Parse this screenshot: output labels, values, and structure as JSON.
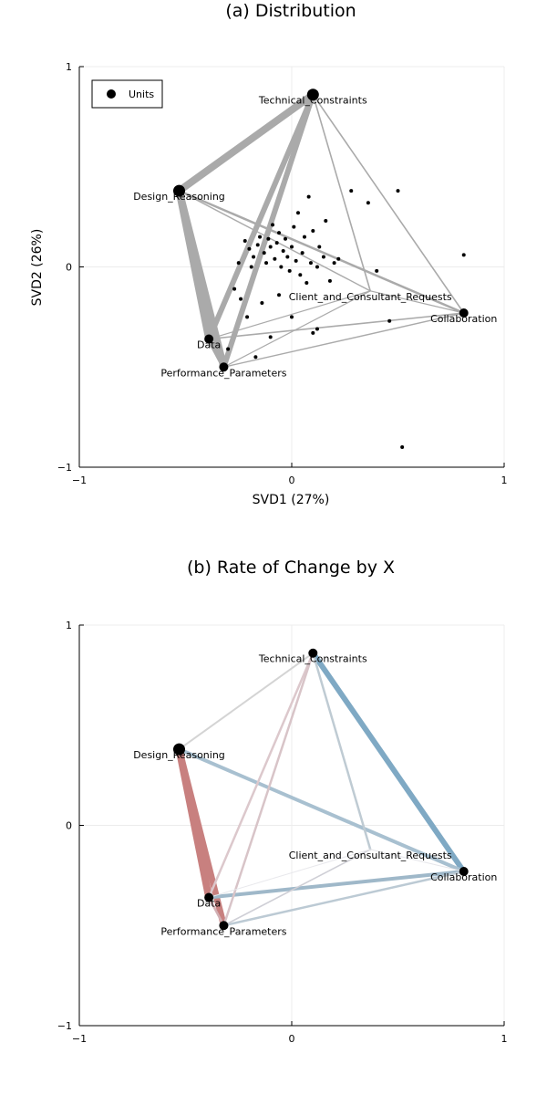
{
  "chart_data": [
    {
      "type": "scatter",
      "title": "(a) Distribution",
      "xlabel": "SVD1 (27%)",
      "ylabel": "SVD2 (26%)",
      "xlim": [
        -1,
        1
      ],
      "ylim": [
        -1,
        1
      ],
      "xticks": [
        "−1",
        "0",
        "1"
      ],
      "yticks": [
        "−1",
        "0",
        "1"
      ],
      "grid": true,
      "legend": {
        "placement": "top-left",
        "entries": [
          "Units"
        ]
      },
      "nodes": [
        {
          "label": "Technical_Constraints",
          "x": 0.1,
          "y": 0.86
        },
        {
          "label": "Design_Reasoning",
          "x": -0.53,
          "y": 0.38
        },
        {
          "label": "Client_and_Consultant_Requests",
          "x": 0.37,
          "y": -0.12
        },
        {
          "label": "Collaboration",
          "x": 0.81,
          "y": -0.23
        },
        {
          "label": "Data",
          "x": -0.39,
          "y": -0.36
        },
        {
          "label": "Performance_Parameters",
          "x": -0.32,
          "y": -0.5
        }
      ],
      "edges": [
        {
          "from": 0,
          "to": 1,
          "w": 8
        },
        {
          "from": 0,
          "to": 4,
          "w": 6
        },
        {
          "from": 0,
          "to": 5,
          "w": 6
        },
        {
          "from": 1,
          "to": 4,
          "w": 8
        },
        {
          "from": 1,
          "to": 5,
          "w": 8
        },
        {
          "from": 4,
          "to": 5,
          "w": 5
        },
        {
          "from": 0,
          "to": 2,
          "w": 1.6
        },
        {
          "from": 0,
          "to": 3,
          "w": 1.6
        },
        {
          "from": 1,
          "to": 3,
          "w": 2.5
        },
        {
          "from": 1,
          "to": 2,
          "w": 1.4
        },
        {
          "from": 4,
          "to": 3,
          "w": 1.6
        },
        {
          "from": 5,
          "to": 3,
          "w": 1.4
        },
        {
          "from": 5,
          "to": 2,
          "w": 1.2
        },
        {
          "from": 4,
          "to": 2,
          "w": 1.2
        },
        {
          "from": 2,
          "to": 3,
          "w": 1.2
        }
      ],
      "units": [
        {
          "x": -0.25,
          "y": 0.02
        },
        {
          "x": -0.22,
          "y": 0.13
        },
        {
          "x": -0.2,
          "y": 0.09
        },
        {
          "x": -0.18,
          "y": 0.05
        },
        {
          "x": -0.16,
          "y": 0.11
        },
        {
          "x": -0.15,
          "y": 0.15
        },
        {
          "x": -0.13,
          "y": 0.07
        },
        {
          "x": -0.12,
          "y": 0.02
        },
        {
          "x": -0.11,
          "y": 0.14
        },
        {
          "x": -0.1,
          "y": 0.1
        },
        {
          "x": -0.09,
          "y": 0.21
        },
        {
          "x": -0.08,
          "y": 0.04
        },
        {
          "x": -0.07,
          "y": 0.12
        },
        {
          "x": -0.06,
          "y": 0.17
        },
        {
          "x": -0.05,
          "y": 0.0
        },
        {
          "x": -0.04,
          "y": 0.08
        },
        {
          "x": -0.03,
          "y": 0.14
        },
        {
          "x": -0.02,
          "y": 0.05
        },
        {
          "x": -0.01,
          "y": -0.02
        },
        {
          "x": 0.0,
          "y": 0.1
        },
        {
          "x": 0.01,
          "y": 0.2
        },
        {
          "x": 0.02,
          "y": 0.03
        },
        {
          "x": 0.03,
          "y": 0.27
        },
        {
          "x": 0.04,
          "y": -0.04
        },
        {
          "x": 0.05,
          "y": 0.07
        },
        {
          "x": 0.06,
          "y": 0.15
        },
        {
          "x": 0.07,
          "y": -0.08
        },
        {
          "x": 0.08,
          "y": 0.35
        },
        {
          "x": 0.09,
          "y": 0.02
        },
        {
          "x": 0.1,
          "y": 0.18
        },
        {
          "x": 0.12,
          "y": 0.0
        },
        {
          "x": 0.13,
          "y": 0.1
        },
        {
          "x": 0.15,
          "y": 0.05
        },
        {
          "x": 0.16,
          "y": 0.23
        },
        {
          "x": 0.18,
          "y": -0.07
        },
        {
          "x": 0.2,
          "y": 0.02
        },
        {
          "x": 0.22,
          "y": 0.04
        },
        {
          "x": 0.28,
          "y": 0.38
        },
        {
          "x": 0.36,
          "y": 0.32
        },
        {
          "x": 0.4,
          "y": -0.02
        },
        {
          "x": 0.5,
          "y": 0.38
        },
        {
          "x": 0.46,
          "y": -0.27
        },
        {
          "x": 0.81,
          "y": 0.06
        },
        {
          "x": 0.52,
          "y": -0.9
        },
        {
          "x": -0.21,
          "y": -0.25
        },
        {
          "x": -0.17,
          "y": -0.45
        },
        {
          "x": -0.1,
          "y": -0.35
        },
        {
          "x": 0.0,
          "y": -0.25
        },
        {
          "x": 0.1,
          "y": -0.33
        },
        {
          "x": -0.3,
          "y": -0.41
        },
        {
          "x": -0.14,
          "y": -0.18
        },
        {
          "x": -0.06,
          "y": -0.14
        },
        {
          "x": -0.24,
          "y": -0.16
        },
        {
          "x": 0.12,
          "y": -0.31
        },
        {
          "x": -0.19,
          "y": 0.0
        },
        {
          "x": -0.27,
          "y": -0.11
        }
      ]
    },
    {
      "type": "network",
      "title": "(b) Rate of Change by X",
      "xlim": [
        -1,
        1
      ],
      "ylim": [
        -1,
        1
      ],
      "xticks": [
        "−1",
        "0",
        "1"
      ],
      "yticks": [
        "−1",
        "0",
        "1"
      ],
      "grid": true,
      "colors": {
        "positive": "#c8807f",
        "negative": "#7fa9c4",
        "neutral": "#c9c9d0"
      },
      "nodes": [
        {
          "label": "Technical_Constraints",
          "x": 0.1,
          "y": 0.86
        },
        {
          "label": "Design_Reasoning",
          "x": -0.53,
          "y": 0.38
        },
        {
          "label": "Client_and_Consultant_Requests",
          "x": 0.37,
          "y": -0.12
        },
        {
          "label": "Collaboration",
          "x": 0.81,
          "y": -0.23
        },
        {
          "label": "Data",
          "x": -0.39,
          "y": -0.36
        },
        {
          "label": "Performance_Parameters",
          "x": -0.32,
          "y": -0.5
        }
      ],
      "edges": [
        {
          "from": 1,
          "to": 4,
          "w": 8,
          "color": "#c8807f"
        },
        {
          "from": 1,
          "to": 5,
          "w": 7,
          "color": "#c8807f"
        },
        {
          "from": 0,
          "to": 3,
          "w": 6,
          "color": "#7fa9c4"
        },
        {
          "from": 1,
          "to": 3,
          "w": 4,
          "color": "#a8c0d0"
        },
        {
          "from": 4,
          "to": 3,
          "w": 4,
          "color": "#9fb8c9"
        },
        {
          "from": 5,
          "to": 3,
          "w": 2.5,
          "color": "#bccad4"
        },
        {
          "from": 0,
          "to": 1,
          "w": 2,
          "color": "#d4d4d4"
        },
        {
          "from": 0,
          "to": 4,
          "w": 2.5,
          "color": "#dcc8cc"
        },
        {
          "from": 0,
          "to": 5,
          "w": 2.5,
          "color": "#d8c4c8"
        },
        {
          "from": 0,
          "to": 2,
          "w": 2.5,
          "color": "#bfcbd3"
        },
        {
          "from": 4,
          "to": 5,
          "w": 2.5,
          "color": "#d2b0b4"
        },
        {
          "from": 5,
          "to": 2,
          "w": 1.6,
          "color": "#cfcfd6"
        },
        {
          "from": 4,
          "to": 2,
          "w": 1,
          "color": "#e8e8ec"
        },
        {
          "from": 2,
          "to": 3,
          "w": 1,
          "color": "#e6e6ea"
        }
      ]
    }
  ]
}
